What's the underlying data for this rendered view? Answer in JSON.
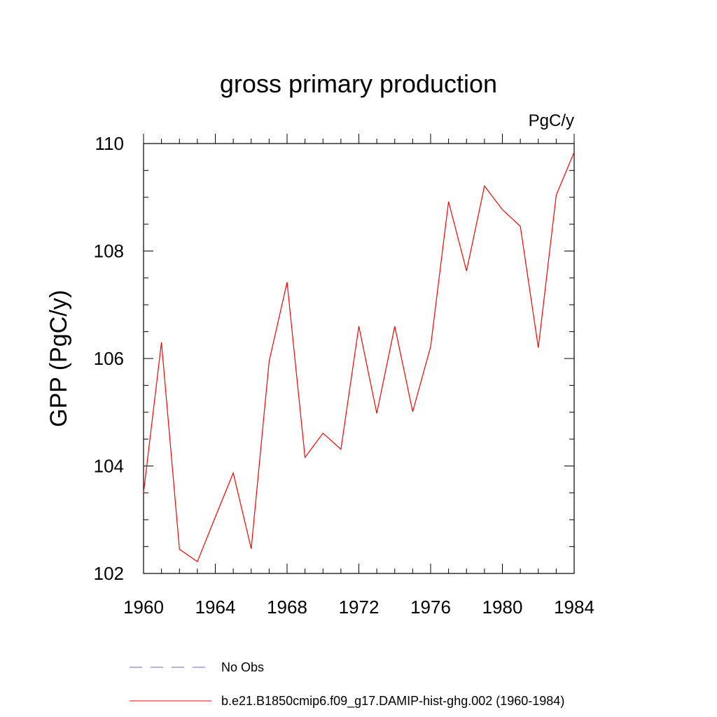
{
  "chart_data": {
    "type": "line",
    "title": "gross primary production",
    "units_label": "PgC/y",
    "ylabel": "GPP  (PgC/y)",
    "xlabel": "",
    "xlim": [
      1960,
      1984
    ],
    "ylim": [
      102,
      110
    ],
    "x_ticks": [
      1960,
      1964,
      1968,
      1972,
      1976,
      1980,
      1984
    ],
    "y_ticks": [
      102,
      104,
      106,
      108,
      110
    ],
    "grid": false,
    "legend_position": "bottom",
    "series": [
      {
        "name": "No Obs",
        "color": "#6666cc",
        "style": "dashed",
        "x": [],
        "values": []
      },
      {
        "name": "b.e21.B1850cmip6.f09_g17.DAMIP-hist-ghg.002 (1960-1984)",
        "color": "#ff0000",
        "style": "solid",
        "x": [
          1960,
          1961,
          1962,
          1963,
          1964,
          1965,
          1966,
          1967,
          1968,
          1969,
          1970,
          1971,
          1972,
          1973,
          1974,
          1975,
          1976,
          1977,
          1978,
          1979,
          1980,
          1981,
          1982,
          1983,
          1984
        ],
        "values": [
          103.5,
          106.3,
          102.45,
          102.22,
          103.05,
          103.87,
          102.46,
          105.95,
          107.42,
          104.16,
          104.61,
          104.31,
          106.6,
          104.98,
          106.6,
          105.01,
          106.22,
          108.92,
          107.63,
          109.21,
          108.77,
          108.46,
          106.2,
          109.04,
          109.84
        ]
      }
    ]
  }
}
